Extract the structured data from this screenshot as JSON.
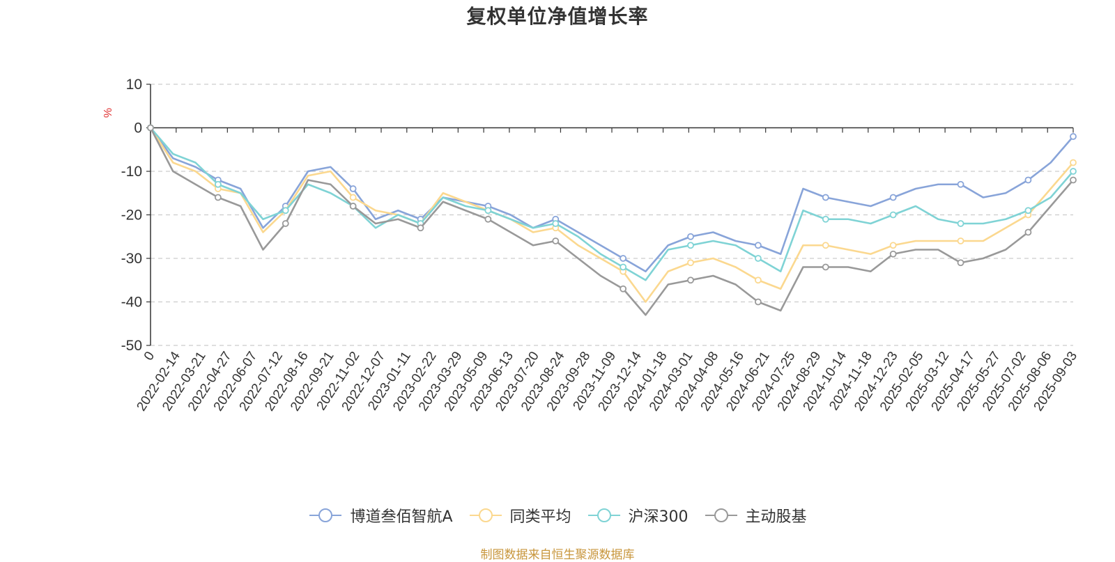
{
  "title": "复权单位净值增长率",
  "source_note": "制图数据来自恒生聚源数据库",
  "colors": {
    "博道叁佰智航A": "#88a4d9",
    "同类平均": "#fbd88f",
    "沪深300": "#7fd3d5",
    "主动股基": "#999999"
  },
  "chart_data": {
    "type": "line",
    "title": "复权单位净值增长率",
    "ylabel": "%",
    "ylim": [
      -50,
      10
    ],
    "yticks": [
      10,
      0,
      -10,
      -20,
      -30,
      -40,
      -50
    ],
    "grid": true,
    "legend_position": "bottom-center",
    "x_tick_labels": [
      "0",
      "2022-02-14",
      "2022-03-21",
      "2022-04-27",
      "2022-06-07",
      "2022-07-12",
      "2022-08-16",
      "2022-09-21",
      "2022-11-02",
      "2022-12-07",
      "2023-01-11",
      "2023-02-22",
      "2023-03-29",
      "2023-05-09",
      "2023-06-13",
      "2023-07-20",
      "2023-08-24",
      "2023-09-28",
      "2023-11-09",
      "2023-12-14",
      "2024-01-18",
      "2024-03-01",
      "2024-04-08",
      "2024-05-16",
      "2024-06-21",
      "2024-07-25",
      "2024-08-29",
      "2024-10-14",
      "2024-11-18",
      "2024-12-23",
      "2025-02-05",
      "2025-03-12",
      "2025-04-17",
      "2025-05-27",
      "2025-07-02",
      "2025-08-06",
      "2025-09-03"
    ],
    "series": [
      {
        "name": "博道叁佰智航A",
        "values": [
          0,
          -7,
          -9,
          -12,
          -14,
          -23,
          -18,
          -10,
          -9,
          -14,
          -21,
          -19,
          -21,
          -16,
          -17,
          -18,
          -20,
          -23,
          -21,
          -24,
          -27,
          -30,
          -33,
          -27,
          -25,
          -24,
          -26,
          -27,
          -29,
          -14,
          -16,
          -17,
          -18,
          -16,
          -14,
          -13,
          -13,
          -16,
          -15,
          -12,
          -8,
          -2
        ]
      },
      {
        "name": "同类平均",
        "values": [
          0,
          -8,
          -10,
          -14,
          -15,
          -24,
          -19,
          -11,
          -10,
          -16,
          -19,
          -20,
          -22,
          -15,
          -17,
          -19,
          -21,
          -24,
          -23,
          -27,
          -30,
          -33,
          -40,
          -33,
          -31,
          -30,
          -32,
          -35,
          -37,
          -27,
          -27,
          -28,
          -29,
          -27,
          -26,
          -26,
          -26,
          -26,
          -23,
          -20,
          -14,
          -8
        ]
      },
      {
        "name": "沪深300",
        "values": [
          0,
          -6,
          -8,
          -13,
          -15,
          -21,
          -19,
          -13,
          -15,
          -18,
          -23,
          -20,
          -22,
          -16,
          -18,
          -19,
          -21,
          -23,
          -22,
          -25,
          -29,
          -32,
          -35,
          -28,
          -27,
          -26,
          -27,
          -30,
          -33,
          -19,
          -21,
          -21,
          -22,
          -20,
          -18,
          -21,
          -22,
          -22,
          -21,
          -19,
          -16,
          -10
        ]
      },
      {
        "name": "主动股基",
        "values": [
          0,
          -10,
          -13,
          -16,
          -18,
          -28,
          -22,
          -12,
          -13,
          -18,
          -22,
          -21,
          -23,
          -17,
          -19,
          -21,
          -24,
          -27,
          -26,
          -30,
          -34,
          -37,
          -43,
          -36,
          -35,
          -34,
          -36,
          -40,
          -42,
          -32,
          -32,
          -32,
          -33,
          -29,
          -28,
          -28,
          -31,
          -30,
          -28,
          -24,
          -18,
          -12
        ]
      }
    ]
  }
}
